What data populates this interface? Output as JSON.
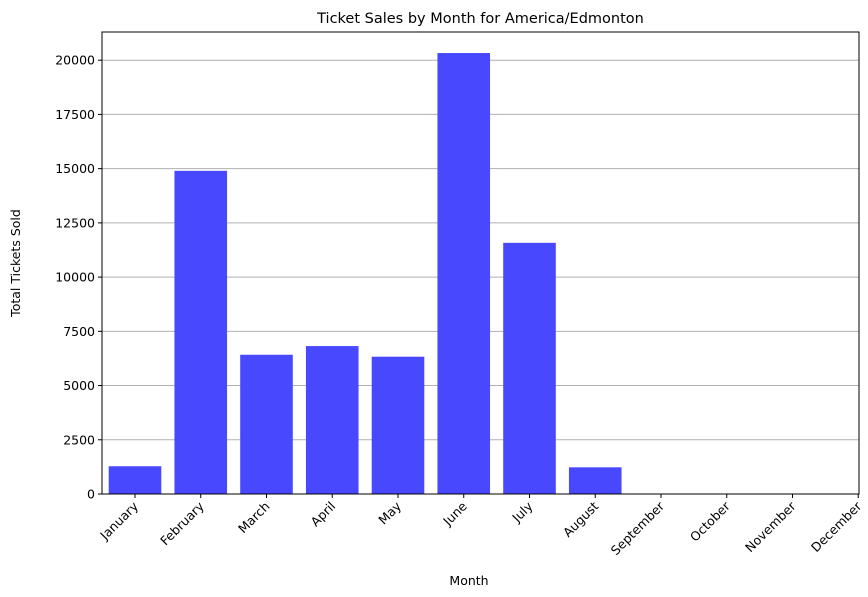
{
  "chart_data": {
    "type": "bar",
    "title": "Ticket Sales by Month for America/Edmonton",
    "xlabel": "Month",
    "ylabel": "Total Tickets Sold",
    "categories": [
      "January",
      "February",
      "March",
      "April",
      "May",
      "June",
      "July",
      "August",
      "September",
      "October",
      "November",
      "December"
    ],
    "values": [
      1280,
      14900,
      6420,
      6820,
      6330,
      20330,
      11580,
      1230,
      0,
      0,
      0,
      0
    ],
    "ylim": [
      0,
      21300
    ],
    "yticks": [
      0,
      2500,
      5000,
      7500,
      10000,
      12500,
      15000,
      17500,
      20000
    ],
    "grid": "horizontal",
    "bar_color": "#4848ff"
  }
}
